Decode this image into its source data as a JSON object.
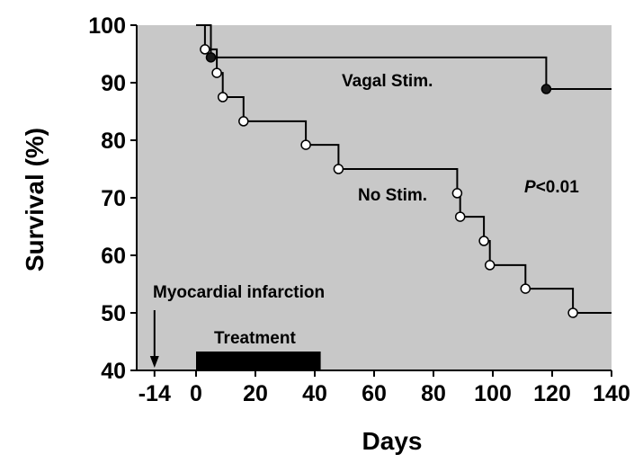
{
  "chart_data": {
    "type": "line",
    "xlabel": "Days",
    "ylabel": "Survival (%)",
    "xlim": [
      -20,
      140
    ],
    "ylim": [
      40,
      100
    ],
    "x_ticks": [
      -14,
      0,
      20,
      40,
      60,
      80,
      100,
      120,
      140
    ],
    "y_ticks": [
      40,
      50,
      60,
      70,
      80,
      90,
      100
    ],
    "background": "#c8c8c8",
    "grid": false,
    "series": [
      {
        "name": "Vagal Stim.",
        "style": "step",
        "marker": "filled-circle",
        "color": "#000000",
        "steps": [
          [
            0,
            100
          ],
          [
            5,
            94.4
          ],
          [
            118,
            88.9
          ],
          [
            140,
            88.9
          ]
        ],
        "censored": [
          [
            5,
            94.4
          ],
          [
            118,
            88.9
          ]
        ]
      },
      {
        "name": "No Stim.",
        "style": "step",
        "marker": "open-circle",
        "color": "#000000",
        "steps": [
          [
            0,
            100
          ],
          [
            3,
            95.8
          ],
          [
            7,
            91.7
          ],
          [
            9,
            87.5
          ],
          [
            16,
            83.3
          ],
          [
            37,
            79.2
          ],
          [
            48,
            75.0
          ],
          [
            88,
            70.8
          ],
          [
            89,
            66.7
          ],
          [
            97,
            62.5
          ],
          [
            99,
            58.3
          ],
          [
            111,
            54.2
          ],
          [
            127,
            50.0
          ],
          [
            140,
            50.0
          ]
        ],
        "censored": [
          [
            3,
            95.8
          ],
          [
            7,
            91.7
          ],
          [
            9,
            87.5
          ],
          [
            16,
            83.3
          ],
          [
            37,
            79.2
          ],
          [
            48,
            75.0
          ],
          [
            88,
            70.8
          ],
          [
            89,
            66.7
          ],
          [
            97,
            62.5
          ],
          [
            99,
            58.3
          ],
          [
            111,
            54.2
          ],
          [
            127,
            50.0
          ]
        ]
      }
    ],
    "annotations": {
      "p_value_prefix": "P",
      "p_value_rest": "<0.01",
      "mi_label": "Myocardial infarction",
      "mi_day": -14,
      "treatment_label": "Treatment",
      "treatment_range": [
        0,
        42
      ]
    }
  }
}
